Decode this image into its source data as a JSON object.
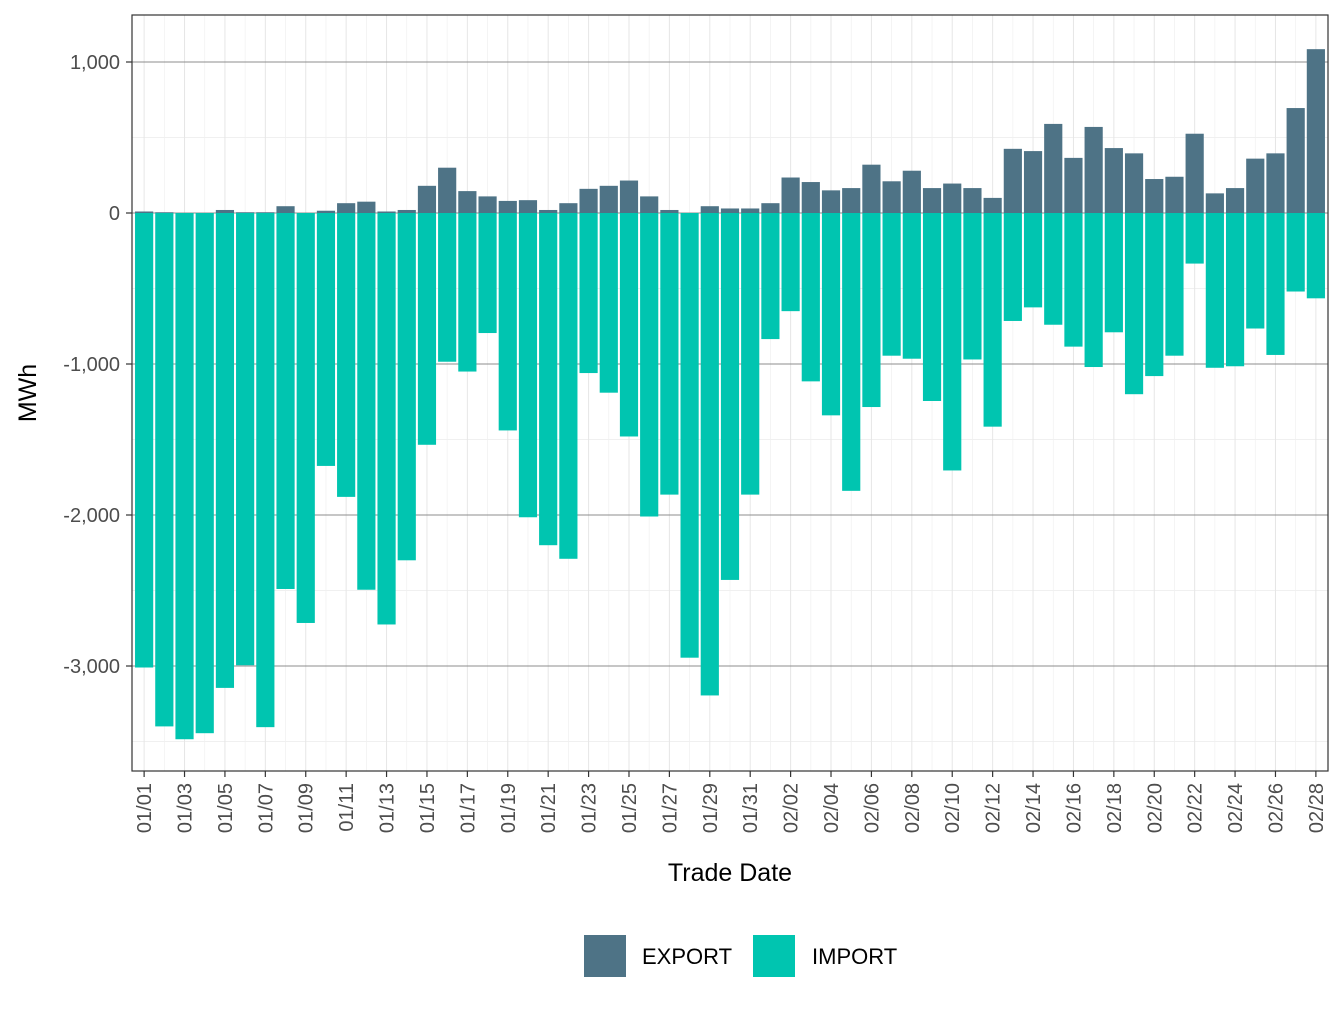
{
  "chart_data": {
    "type": "bar",
    "stacked": true,
    "title": "",
    "xlabel": "Trade Date",
    "ylabel": "MWh",
    "ylim": [
      -3700,
      1250
    ],
    "yticks": [
      -3000,
      -2000,
      -1000,
      0,
      1000
    ],
    "ytick_labels": [
      "-3,000",
      "-2,000",
      "-1,000",
      "0",
      "1,000"
    ],
    "legend_position": "bottom",
    "grid": true,
    "categories": [
      "01/01",
      "01/02",
      "01/03",
      "01/04",
      "01/05",
      "01/06",
      "01/07",
      "01/08",
      "01/09",
      "01/10",
      "01/11",
      "01/12",
      "01/13",
      "01/14",
      "01/15",
      "01/16",
      "01/17",
      "01/18",
      "01/19",
      "01/20",
      "01/21",
      "01/22",
      "01/23",
      "01/24",
      "01/25",
      "01/26",
      "01/27",
      "01/28",
      "01/29",
      "01/30",
      "01/31",
      "02/01",
      "02/02",
      "02/03",
      "02/04",
      "02/05",
      "02/06",
      "02/07",
      "02/08",
      "02/09",
      "02/10",
      "02/11",
      "02/12",
      "02/13",
      "02/14",
      "02/15",
      "02/16",
      "02/17",
      "02/18",
      "02/19",
      "02/20",
      "02/21",
      "02/22",
      "02/23",
      "02/24",
      "02/25",
      "02/26",
      "02/27",
      "02/28"
    ],
    "xtick_labels": [
      "01/01",
      "01/03",
      "01/05",
      "01/07",
      "01/09",
      "01/11",
      "01/13",
      "01/15",
      "01/17",
      "01/19",
      "01/21",
      "01/23",
      "01/25",
      "01/27",
      "01/29",
      "01/31",
      "02/02",
      "02/04",
      "02/06",
      "02/08",
      "02/10",
      "02/12",
      "02/14",
      "02/16",
      "02/18",
      "02/20",
      "02/22",
      "02/24",
      "02/26",
      "02/28"
    ],
    "series": [
      {
        "name": "EXPORT",
        "color": "#4E7386",
        "values": [
          10,
          5,
          0,
          0,
          20,
          5,
          5,
          45,
          0,
          15,
          65,
          75,
          10,
          20,
          180,
          300,
          145,
          110,
          80,
          85,
          20,
          65,
          160,
          180,
          215,
          110,
          20,
          0,
          45,
          30,
          30,
          65,
          235,
          205,
          150,
          165,
          320,
          210,
          280,
          165,
          195,
          165,
          100,
          425,
          410,
          590,
          365,
          570,
          430,
          395,
          225,
          240,
          525,
          130,
          165,
          360,
          395,
          695,
          1085
        ]
      },
      {
        "name": "IMPORT",
        "color": "#00C5B0",
        "values": [
          -3010,
          -3400,
          -3485,
          -3445,
          -3145,
          -2995,
          -3405,
          -2490,
          -2715,
          -1675,
          -1880,
          -2495,
          -2725,
          -2300,
          -1535,
          -985,
          -1050,
          -795,
          -1440,
          -2015,
          -2200,
          -2290,
          -1060,
          -1190,
          -1480,
          -2010,
          -1865,
          -2945,
          -3195,
          -2430,
          -1865,
          -835,
          -650,
          -1115,
          -1340,
          -1840,
          -1285,
          -945,
          -965,
          -1245,
          -1705,
          -970,
          -1415,
          -715,
          -625,
          -740,
          -885,
          -1020,
          -790,
          -1200,
          -1080,
          -945,
          -335,
          -1025,
          -1015,
          -765,
          -940,
          -520,
          -565
        ]
      }
    ]
  }
}
